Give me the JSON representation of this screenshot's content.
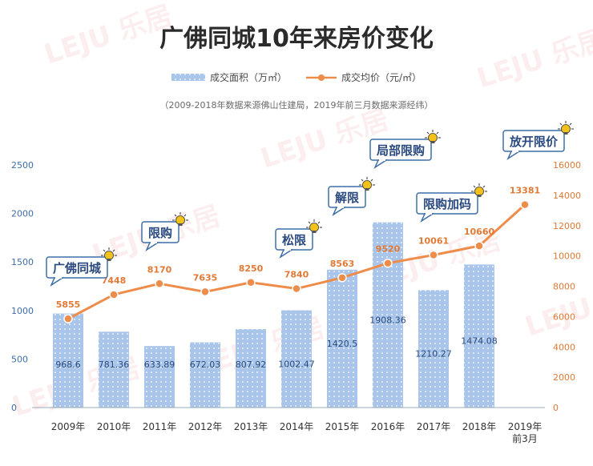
{
  "watermark": "LEJU 乐居",
  "colors": {
    "bar_fill": "#a9c6ea",
    "bar_dot": "#ffffff",
    "bar_label": "#2a4a7f",
    "line": "#ee8c4a",
    "line_label": "#e07a36",
    "left_axis": "#3d6ea8",
    "right_axis": "#e07a36",
    "callout_bg": "#ffffff",
    "callout_border": "#3d6ea8",
    "callout_text": "#2a4a7f",
    "bulb": "#f2c21b"
  },
  "chart_data": {
    "type": "bar",
    "title": "广佛同城10年来房价变化",
    "subtitle": "（2009-2018年数据来源佛山住建局，2019年前三月数据来源经纬）",
    "categories": [
      "2009年",
      "2010年",
      "2011年",
      "2012年",
      "2013年",
      "2014年",
      "2015年",
      "2016年",
      "2017年",
      "2018年",
      "2019年前3月"
    ],
    "category_lines": [
      [
        "2009年"
      ],
      [
        "2010年"
      ],
      [
        "2011年"
      ],
      [
        "2012年"
      ],
      [
        "2013年"
      ],
      [
        "2014年"
      ],
      [
        "2015年"
      ],
      [
        "2016年"
      ],
      [
        "2017年"
      ],
      [
        "2018年"
      ],
      [
        "2019年",
        "前3月"
      ]
    ],
    "series": [
      {
        "name": "成交面积（万㎡）",
        "type": "bar",
        "axis": "left",
        "values": [
          968.6,
          781.36,
          633.89,
          672.03,
          807.92,
          1002.47,
          1420.5,
          1908.36,
          1210.27,
          1474.08,
          null
        ],
        "labels": [
          "968.6",
          "781.36",
          "633.89",
          "672.03",
          "807.92",
          "1002.47",
          "1420.5",
          "1908.36",
          "1210.27",
          "1474.08",
          ""
        ]
      },
      {
        "name": "成交均价（元/㎡）",
        "type": "line",
        "axis": "right",
        "values": [
          5855,
          7448,
          8170,
          7635,
          8250,
          7840,
          8563,
          9520,
          10061,
          10660,
          13381
        ],
        "labels": [
          "5855",
          "7448",
          "8170",
          "7635",
          "8250",
          "7840",
          "8563",
          "9520",
          "10061",
          "10660",
          "13381"
        ]
      }
    ],
    "y_left": {
      "min": 0,
      "max": 2500,
      "ticks": [
        "0",
        "500",
        "1000",
        "1500",
        "2000",
        "2500"
      ]
    },
    "y_right": {
      "min": 0,
      "max": 16000,
      "ticks": [
        "0",
        "2000",
        "4000",
        "6000",
        "8000",
        "10000",
        "12000",
        "14000",
        "16000"
      ]
    },
    "legend_position": "top-center",
    "grid": false,
    "annotations": [
      {
        "text": "广佛同城",
        "category_index": 0
      },
      {
        "text": "限购",
        "category_index": 2
      },
      {
        "text": "松限",
        "category_index": 5
      },
      {
        "text": "解限",
        "category_index": 6
      },
      {
        "text": "局部限购",
        "category_index": 7
      },
      {
        "text": "限购加码",
        "category_index": 9
      },
      {
        "text": "放开限价",
        "category_index": 10
      }
    ]
  }
}
